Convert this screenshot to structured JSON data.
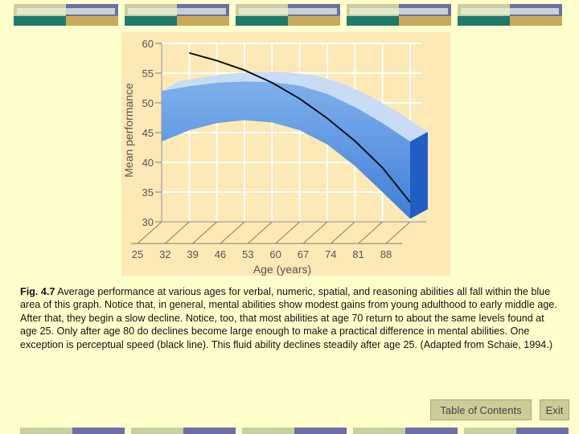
{
  "chart_data": {
    "type": "area",
    "title": "",
    "xlabel": "Age (years)",
    "ylabel": "Mean performance",
    "x": [
      25,
      32,
      39,
      46,
      53,
      60,
      67,
      74,
      81,
      88
    ],
    "ylim": [
      30,
      60
    ],
    "y_ticks": [
      30,
      35,
      40,
      45,
      50,
      55,
      60
    ],
    "grid": true,
    "legend": "none",
    "series": [
      {
        "kind": "band",
        "color": "#3f7fd8",
        "upper": [
          52.0,
          52.8,
          53.4,
          53.6,
          53.5,
          52.9,
          51.5,
          49.3,
          46.6,
          43.5
        ],
        "lower": [
          43.5,
          45.4,
          46.6,
          47.1,
          46.7,
          45.4,
          43.0,
          39.4,
          35.0,
          30.5
        ]
      },
      {
        "kind": "line",
        "color": "#111111",
        "x": [
          32,
          39,
          46,
          53,
          60,
          67,
          74,
          81,
          88
        ],
        "values": [
          58.4,
          57.1,
          55.5,
          53.4,
          50.7,
          47.4,
          43.6,
          39.1,
          33.3
        ]
      }
    ]
  },
  "caption": {
    "fig_label": "Fig. 4.7",
    "text": " Average performance at various ages for verbal, numeric, spatial, and reasoning abilities all fall within the blue area of this graph. Notice that, in general, mental abilities show modest gains from young adulthood to early middle age. After that, they begin a slow decline. Notice, too, that most abilities at age 70 return to about the same levels found at age 25. Only after age 80 do declines become large enough to make a practical difference in mental abilities. One exception is perceptual speed (black line). This fluid ability declines steadily after age 25.  (Adapted from Schaie, 1994.)"
  },
  "nav": {
    "toc_label": "Table of Contents",
    "exit_label": "Exit"
  },
  "colors": {
    "background": "#ffffcc",
    "plot_bg": "#fde9b6",
    "band_front": "#3f7fd8",
    "band_top": "#c9dcf6",
    "band_side": "#1f5fc4"
  }
}
